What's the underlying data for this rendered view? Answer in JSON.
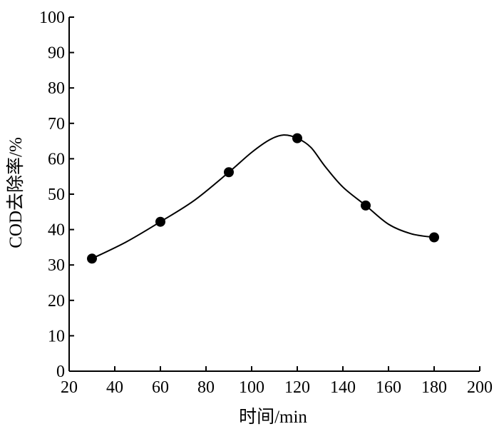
{
  "chart_data": {
    "type": "line",
    "title": "",
    "xlabel": "时间/min",
    "ylabel": "COD去除率/%",
    "xlim": [
      20,
      200
    ],
    "ylim": [
      0,
      100
    ],
    "xticks": [
      20,
      40,
      60,
      80,
      100,
      120,
      140,
      160,
      180,
      200
    ],
    "yticks": [
      0,
      10,
      20,
      30,
      40,
      50,
      60,
      70,
      80,
      90,
      100
    ],
    "grid": false,
    "legend": "none",
    "series": [
      {
        "points": [
          {
            "x": 30,
            "y": 31.8
          },
          {
            "x": 60,
            "y": 42.2
          },
          {
            "x": 90,
            "y": 56.2
          },
          {
            "x": 120,
            "y": 65.8
          },
          {
            "x": 150,
            "y": 46.8
          },
          {
            "x": 180,
            "y": 37.8
          }
        ],
        "curve": [
          [
            30,
            31.8
          ],
          [
            45,
            36.5
          ],
          [
            60,
            42.2
          ],
          [
            75,
            48.3
          ],
          [
            90,
            56.2
          ],
          [
            100,
            61.8
          ],
          [
            108,
            65.4
          ],
          [
            114,
            66.7
          ],
          [
            120,
            65.8
          ],
          [
            126,
            63.2
          ],
          [
            132,
            58
          ],
          [
            140,
            52
          ],
          [
            150,
            46.8
          ],
          [
            160,
            41.5
          ],
          [
            170,
            38.8
          ],
          [
            180,
            37.8
          ]
        ],
        "color": "#000000",
        "marker": "filled-circle"
      }
    ]
  }
}
